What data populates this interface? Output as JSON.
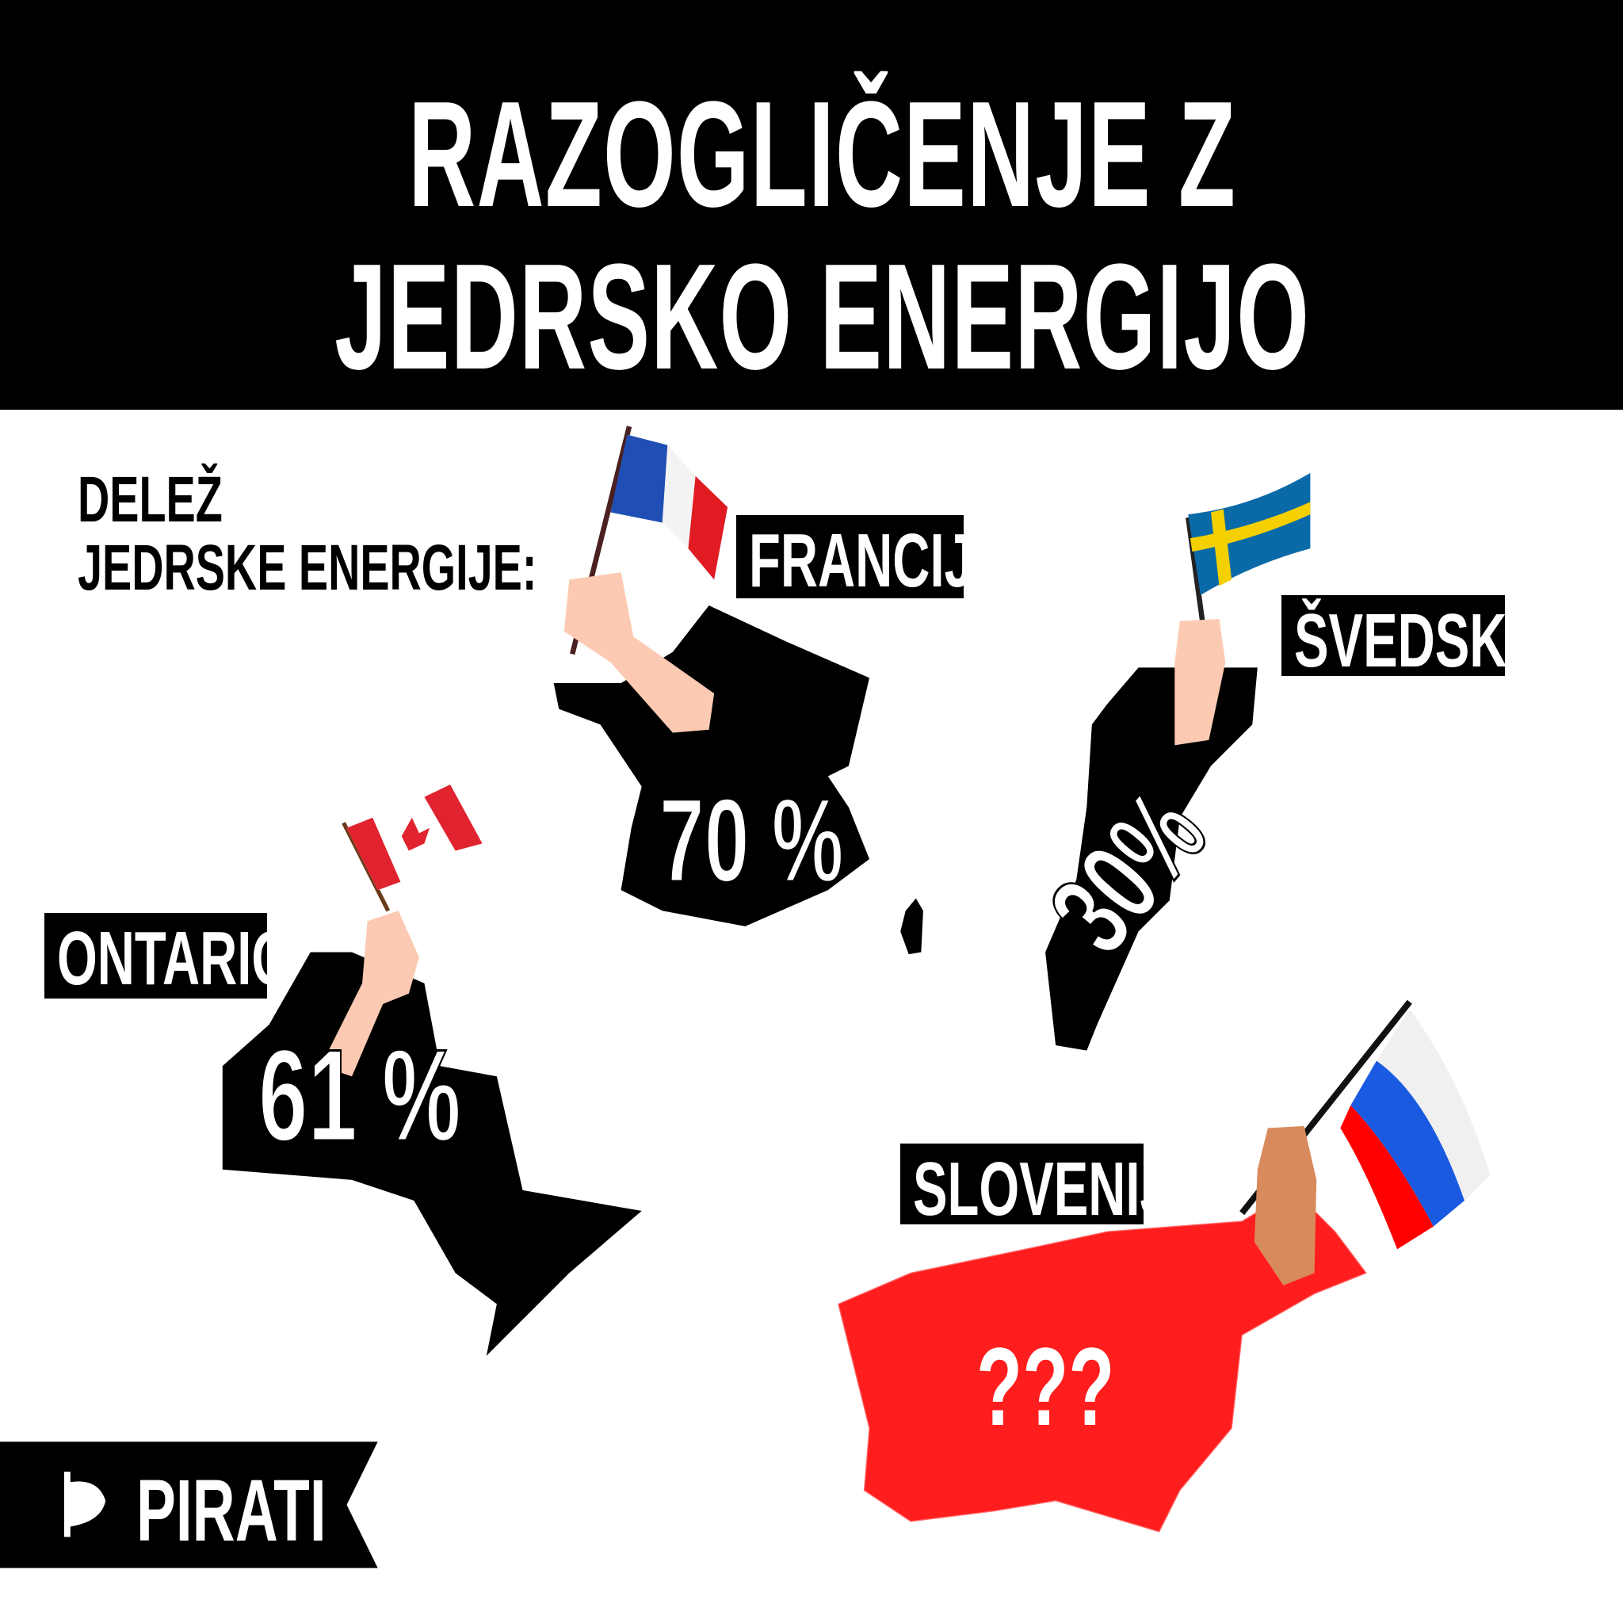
{
  "title": {
    "line1": "RAZOGLIČENJE Z",
    "line2": "JEDRSKO ENERGIJO"
  },
  "subtitle": {
    "line1": "DELEŽ",
    "line2": "JEDRSKE ENERGIJE:"
  },
  "countries": [
    {
      "name": "FRANCIJA",
      "value": "70 %"
    },
    {
      "name": "ŠVEDSKA",
      "value": "30%"
    },
    {
      "name": "ONTARIO",
      "value": "61 %"
    },
    {
      "name": "SLOVENIJA",
      "value": "???"
    }
  ],
  "brand": {
    "name": "PIRATI",
    "logo": "pirate-party-p-logo"
  },
  "colors": {
    "header": "#000000",
    "map": "#000000",
    "slovenia": "#ff1d1d",
    "skin": "#fccab2",
    "text": "#ffffff"
  }
}
